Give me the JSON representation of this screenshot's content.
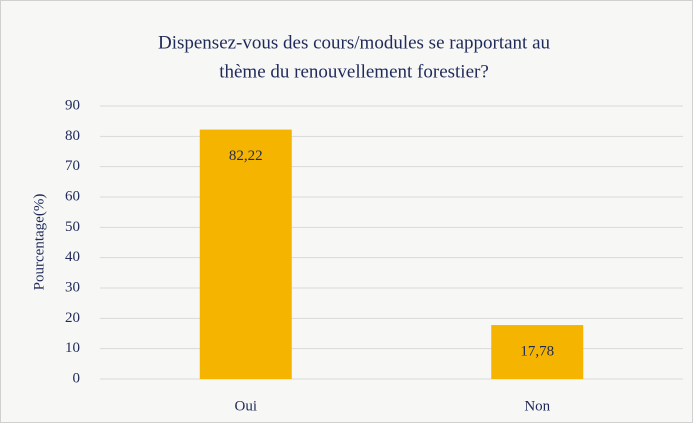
{
  "chart_data": {
    "type": "bar",
    "title": [
      "Dispensez-vous des cours/modules se rapportant au",
      "thème du renouvellement forestier?"
    ],
    "y_label": "Pourcentage(%)",
    "categories": [
      "Oui",
      "Non"
    ],
    "values": [
      82.22,
      17.78
    ],
    "value_labels": [
      "82,22",
      "17,78"
    ],
    "color": "#f4b400",
    "ylim": [
      0,
      90
    ],
    "yticks": [
      0,
      10,
      20,
      30,
      40,
      50,
      60,
      70,
      80,
      90
    ],
    "grid": true
  }
}
